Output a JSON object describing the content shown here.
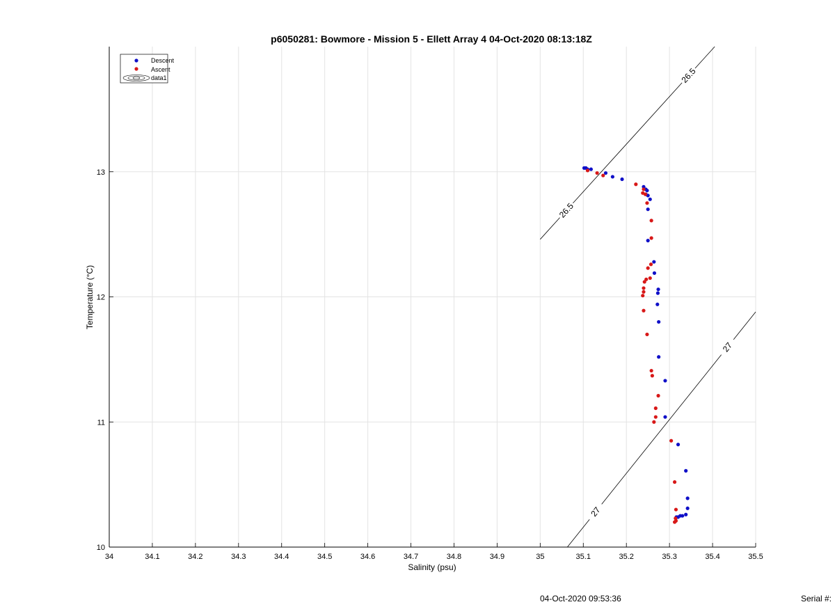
{
  "footer": {
    "timestamp": "04-Oct-2020 09:53:36",
    "serial_label": "Serial #:"
  },
  "chart_data": {
    "type": "scatter",
    "title": "p6050281: Bowmore - Mission 5 - Ellett Array 4 04-Oct-2020 08:13:18Z",
    "xlabel": "Salinity (psu)",
    "ylabel": "Temperature (°C)",
    "xlim": [
      34,
      35.5
    ],
    "ylim": [
      10,
      14
    ],
    "x_ticks": [
      "34",
      "34.1",
      "34.2",
      "34.3",
      "34.4",
      "34.5",
      "34.6",
      "34.7",
      "34.8",
      "34.9",
      "35",
      "35.1",
      "35.2",
      "35.3",
      "35.4",
      "35.5"
    ],
    "y_ticks": [
      "10",
      "11",
      "12",
      "13"
    ],
    "grid": true,
    "legend_placement": "top-left",
    "legend": [
      "Descent",
      "Ascent",
      "data1"
    ],
    "colors": {
      "descent": "#1010c8",
      "ascent": "#d81818",
      "contour": "#000000",
      "grid": "#e3e3e3"
    },
    "series": [
      {
        "name": "Descent",
        "points": [
          [
            35.102,
            13.03
          ],
          [
            35.106,
            13.03
          ],
          [
            35.11,
            13.02
          ],
          [
            35.118,
            13.02
          ],
          [
            35.152,
            12.99
          ],
          [
            35.168,
            12.96
          ],
          [
            35.19,
            12.94
          ],
          [
            35.24,
            12.88
          ],
          [
            35.245,
            12.86
          ],
          [
            35.248,
            12.85
          ],
          [
            35.245,
            12.82
          ],
          [
            35.25,
            12.81
          ],
          [
            35.255,
            12.78
          ],
          [
            35.25,
            12.7
          ],
          [
            35.25,
            12.45
          ],
          [
            35.264,
            12.28
          ],
          [
            35.265,
            12.19
          ],
          [
            35.274,
            12.06
          ],
          [
            35.273,
            12.03
          ],
          [
            35.272,
            11.94
          ],
          [
            35.275,
            11.8
          ],
          [
            35.275,
            11.52
          ],
          [
            35.29,
            11.33
          ],
          [
            35.29,
            11.04
          ],
          [
            35.32,
            10.82
          ],
          [
            35.338,
            10.61
          ],
          [
            35.342,
            10.39
          ],
          [
            35.342,
            10.31
          ],
          [
            35.338,
            10.26
          ],
          [
            35.33,
            10.25
          ],
          [
            35.325,
            10.25
          ],
          [
            35.32,
            10.24
          ],
          [
            35.316,
            10.24
          ]
        ]
      },
      {
        "name": "Ascent",
        "points": [
          [
            35.11,
            13.01
          ],
          [
            35.132,
            12.99
          ],
          [
            35.146,
            12.97
          ],
          [
            35.222,
            12.9
          ],
          [
            35.24,
            12.86
          ],
          [
            35.238,
            12.83
          ],
          [
            35.244,
            12.82
          ],
          [
            35.248,
            12.75
          ],
          [
            35.258,
            12.61
          ],
          [
            35.258,
            12.47
          ],
          [
            35.257,
            12.26
          ],
          [
            35.25,
            12.23
          ],
          [
            35.255,
            12.15
          ],
          [
            35.246,
            12.14
          ],
          [
            35.242,
            12.12
          ],
          [
            35.24,
            12.07
          ],
          [
            35.24,
            12.04
          ],
          [
            35.238,
            12.01
          ],
          [
            35.24,
            11.89
          ],
          [
            35.248,
            11.7
          ],
          [
            35.258,
            11.41
          ],
          [
            35.26,
            11.37
          ],
          [
            35.274,
            11.21
          ],
          [
            35.268,
            11.11
          ],
          [
            35.268,
            11.04
          ],
          [
            35.264,
            11.0
          ],
          [
            35.304,
            10.85
          ],
          [
            35.312,
            10.52
          ],
          [
            35.315,
            10.3
          ],
          [
            35.314,
            10.23
          ],
          [
            35.315,
            10.21
          ],
          [
            35.312,
            10.2
          ]
        ]
      }
    ],
    "contours": [
      {
        "label": "26.5",
        "from": [
          35.0,
          12.46
        ],
        "to": [
          35.405,
          14.0
        ]
      },
      {
        "label": "27",
        "from": [
          35.063,
          10.0
        ],
        "to": [
          35.5,
          11.88
        ]
      }
    ]
  }
}
